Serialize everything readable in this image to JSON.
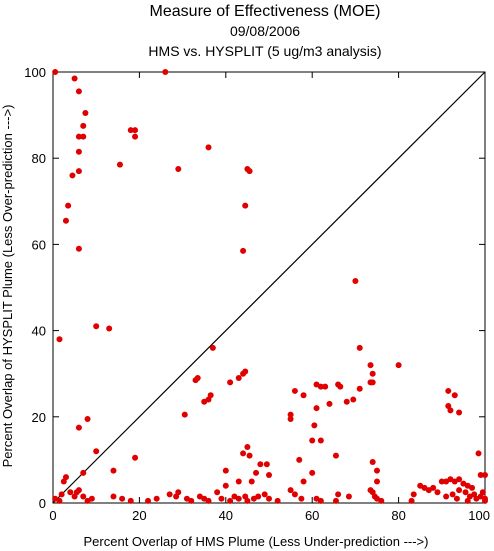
{
  "chart_data": {
    "type": "scatter",
    "title": "Measure of Effectiveness (MOE)",
    "date": "09/08/2006",
    "subtitle": "HMS vs. HYSPLIT  (5 ug/m3 analysis)",
    "xlabel": "Percent Overlap of HMS Plume (Less Under-prediction --->)",
    "ylabel": "Percent Overlap of HYSPLIT Plume (Less Over-prediction --->)",
    "xlim": [
      0,
      100
    ],
    "ylim": [
      0,
      100
    ],
    "xticks": [
      "0",
      "20",
      "40",
      "60",
      "80",
      "100"
    ],
    "yticks": [
      "0",
      "20",
      "40",
      "60",
      "80",
      "100"
    ],
    "xtick_values": [
      0,
      20,
      40,
      60,
      80,
      100
    ],
    "ytick_values": [
      0,
      20,
      40,
      60,
      80,
      100
    ],
    "reference_line": [
      [
        0,
        0
      ],
      [
        100,
        100
      ]
    ],
    "grid": false,
    "point_color": "#e00000",
    "series": [
      {
        "points": [
          [
            0.5,
            100
          ],
          [
            26,
            100
          ],
          [
            5,
            98.5
          ],
          [
            6,
            95.5
          ],
          [
            7.5,
            90.5
          ],
          [
            7,
            87.5
          ],
          [
            6,
            85
          ],
          [
            7,
            85
          ],
          [
            6,
            81.5
          ],
          [
            18,
            86.5
          ],
          [
            19,
            86.5
          ],
          [
            19,
            85
          ],
          [
            15.5,
            78.5
          ],
          [
            6,
            77
          ],
          [
            4.5,
            76
          ],
          [
            3.5,
            69
          ],
          [
            3,
            65.5
          ],
          [
            6,
            59
          ],
          [
            29,
            77.5
          ],
          [
            36,
            82.5
          ],
          [
            45,
            77.5
          ],
          [
            45.5,
            77
          ],
          [
            44.5,
            69
          ],
          [
            44,
            58.5
          ],
          [
            70,
            51.5
          ],
          [
            1.5,
            38
          ],
          [
            10,
            41
          ],
          [
            13,
            40.5
          ],
          [
            37,
            36
          ],
          [
            33.5,
            29
          ],
          [
            33,
            28.5
          ],
          [
            36,
            24
          ],
          [
            36.5,
            25
          ],
          [
            35,
            23.5
          ],
          [
            30.5,
            20.5
          ],
          [
            41,
            28
          ],
          [
            43,
            29
          ],
          [
            44,
            30
          ],
          [
            44.5,
            30.5
          ],
          [
            6,
            17.5
          ],
          [
            8,
            19.5
          ],
          [
            10,
            12
          ],
          [
            19,
            10.5
          ],
          [
            45,
            13
          ],
          [
            44,
            11.5
          ],
          [
            45.5,
            11
          ],
          [
            48,
            9
          ],
          [
            49.5,
            9
          ],
          [
            47,
            7
          ],
          [
            50,
            6.5
          ],
          [
            46,
            5
          ],
          [
            43,
            5
          ],
          [
            40,
            7.5
          ],
          [
            40,
            4
          ],
          [
            71,
            36
          ],
          [
            73.5,
            32
          ],
          [
            74,
            30
          ],
          [
            73.5,
            28
          ],
          [
            74,
            28
          ],
          [
            80,
            32
          ],
          [
            56,
            26
          ],
          [
            58,
            25
          ],
          [
            61,
            27.5
          ],
          [
            62,
            27
          ],
          [
            63,
            27
          ],
          [
            66,
            27.5
          ],
          [
            66.5,
            27
          ],
          [
            68,
            23.5
          ],
          [
            69.5,
            24
          ],
          [
            71,
            26.5
          ],
          [
            64,
            23
          ],
          [
            61,
            22
          ],
          [
            55,
            20.5
          ],
          [
            55,
            19.5
          ],
          [
            60.5,
            18
          ],
          [
            60,
            14.5
          ],
          [
            62,
            14.5
          ],
          [
            65.5,
            11
          ],
          [
            57,
            10
          ],
          [
            60,
            7
          ],
          [
            58,
            5
          ],
          [
            55,
            3
          ],
          [
            56,
            2
          ],
          [
            57.5,
            1
          ],
          [
            61,
            1
          ],
          [
            62,
            0.5
          ],
          [
            65.5,
            0.5
          ],
          [
            66,
            2
          ],
          [
            68.5,
            1.5
          ],
          [
            74,
            9.5
          ],
          [
            75,
            7.5
          ],
          [
            75,
            5
          ],
          [
            73.5,
            3
          ],
          [
            74,
            2.5
          ],
          [
            74.5,
            1.5
          ],
          [
            75,
            1
          ],
          [
            76,
            0.5
          ],
          [
            91.5,
            26
          ],
          [
            93,
            25
          ],
          [
            91.5,
            22.5
          ],
          [
            92,
            21.5
          ],
          [
            94,
            21
          ],
          [
            98.5,
            11.5
          ],
          [
            90,
            5
          ],
          [
            91,
            5
          ],
          [
            92,
            5.5
          ],
          [
            93,
            5
          ],
          [
            94,
            5.5
          ],
          [
            95,
            4.5
          ],
          [
            96,
            4
          ],
          [
            97,
            3.5
          ],
          [
            99,
            6.5
          ],
          [
            100,
            6.5
          ],
          [
            88,
            3.5
          ],
          [
            89,
            2.5
          ],
          [
            91,
            1.5
          ],
          [
            92.5,
            2
          ],
          [
            94,
            3
          ],
          [
            95.5,
            2.5
          ],
          [
            96.5,
            1.5
          ],
          [
            97.5,
            2
          ],
          [
            98,
            1
          ],
          [
            99,
            1.5
          ],
          [
            99.5,
            2.5
          ],
          [
            100,
            1
          ],
          [
            85,
            4
          ],
          [
            86,
            3.5
          ],
          [
            87,
            3
          ],
          [
            83.5,
            2
          ],
          [
            83,
            0.5
          ],
          [
            93.5,
            1
          ],
          [
            96,
            0.5
          ],
          [
            100,
            0.5
          ],
          [
            0.5,
            1
          ],
          [
            1.5,
            0.5
          ],
          [
            2,
            2
          ],
          [
            2.5,
            5
          ],
          [
            3,
            6
          ],
          [
            4,
            2.5
          ],
          [
            5,
            1.5
          ],
          [
            5.5,
            2.5
          ],
          [
            6,
            3
          ],
          [
            7,
            1.5
          ],
          [
            7,
            7
          ],
          [
            9,
            1
          ],
          [
            8,
            0.5
          ],
          [
            14,
            7.5
          ],
          [
            14,
            1.5
          ],
          [
            16,
            1
          ],
          [
            18,
            0.5
          ],
          [
            22,
            0.5
          ],
          [
            24,
            1
          ],
          [
            27,
            2
          ],
          [
            28.5,
            1.5
          ],
          [
            29,
            2.5
          ],
          [
            31,
            1
          ],
          [
            32,
            0.5
          ],
          [
            34,
            1.5
          ],
          [
            35,
            1
          ],
          [
            36,
            0.5
          ],
          [
            38,
            2.5
          ],
          [
            39,
            1
          ],
          [
            41,
            0.5
          ],
          [
            42,
            1.5
          ],
          [
            43,
            1
          ],
          [
            44.5,
            1.5
          ],
          [
            45,
            0.5
          ],
          [
            46.5,
            1
          ],
          [
            47.5,
            1.5
          ],
          [
            49,
            2
          ],
          [
            50,
            1
          ],
          [
            52,
            0.5
          ]
        ]
      }
    ]
  }
}
